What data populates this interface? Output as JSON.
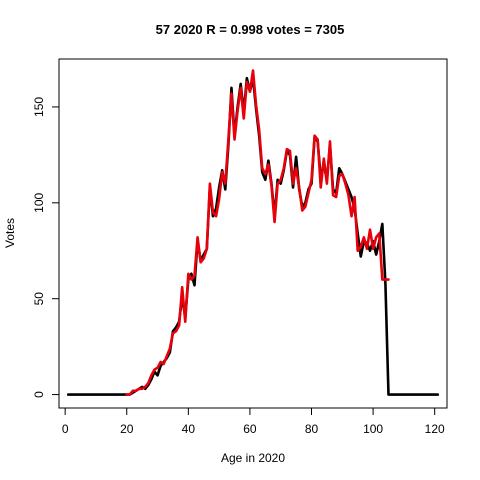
{
  "chart_data": {
    "type": "line",
    "title": "57 2020 R = 0.998 votes = 7305",
    "xlabel": "Age in 2020",
    "ylabel": "Votes",
    "xlim": [
      -2,
      124
    ],
    "ylim": [
      -7,
      175
    ],
    "x_ticks": [
      0,
      20,
      40,
      60,
      80,
      100,
      120
    ],
    "y_ticks": [
      0,
      50,
      100,
      150
    ],
    "grid": false,
    "legend": "none",
    "series": [
      {
        "color": "#000000",
        "x": [
          1,
          2,
          3,
          4,
          5,
          6,
          7,
          8,
          9,
          10,
          11,
          12,
          13,
          14,
          15,
          16,
          17,
          18,
          19,
          20,
          21,
          22,
          23,
          24,
          25,
          26,
          27,
          28,
          29,
          30,
          31,
          32,
          33,
          34,
          35,
          36,
          37,
          38,
          39,
          40,
          41,
          42,
          43,
          44,
          45,
          46,
          47,
          48,
          49,
          50,
          51,
          52,
          53,
          54,
          55,
          56,
          57,
          58,
          59,
          60,
          61,
          62,
          63,
          64,
          65,
          66,
          67,
          68,
          69,
          70,
          71,
          72,
          73,
          74,
          75,
          76,
          77,
          78,
          79,
          80,
          81,
          82,
          83,
          84,
          85,
          86,
          87,
          88,
          89,
          90,
          91,
          92,
          93,
          94,
          95,
          96,
          97,
          98,
          99,
          100,
          101,
          102,
          103,
          104,
          105,
          106,
          107,
          108,
          109,
          110,
          111,
          112,
          113,
          114,
          115,
          116,
          117,
          118,
          119,
          120,
          121
        ],
        "y": [
          0,
          0,
          0,
          0,
          0,
          0,
          0,
          0,
          0,
          0,
          0,
          0,
          0,
          0,
          0,
          0,
          0,
          0,
          0,
          0,
          0,
          1,
          2,
          3,
          4,
          3,
          5,
          8,
          12,
          10,
          15,
          17,
          19,
          22,
          33,
          35,
          38,
          51,
          40,
          60,
          63,
          57,
          80,
          70,
          73,
          76,
          108,
          93,
          97,
          108,
          117,
          107,
          130,
          160,
          135,
          150,
          162,
          147,
          165,
          158,
          165,
          149,
          135,
          116,
          112,
          122,
          110,
          93,
          112,
          110,
          117,
          127,
          125,
          108,
          124,
          107,
          98,
          100,
          107,
          110,
          134,
          132,
          113,
          120,
          112,
          130,
          107,
          105,
          118,
          115,
          111,
          107,
          103,
          97,
          84,
          72,
          80,
          79,
          75,
          80,
          73,
          80,
          89,
          58,
          0,
          0,
          0,
          0,
          0,
          0,
          0,
          0,
          0,
          0,
          0,
          0,
          0,
          0,
          0,
          0,
          0
        ]
      },
      {
        "color": "#e8000b",
        "x": [
          20,
          21,
          22,
          23,
          24,
          25,
          26,
          27,
          28,
          29,
          30,
          31,
          32,
          33,
          34,
          35,
          36,
          37,
          38,
          39,
          40,
          41,
          42,
          43,
          44,
          45,
          46,
          47,
          48,
          49,
          50,
          51,
          52,
          53,
          54,
          55,
          56,
          57,
          58,
          59,
          60,
          61,
          62,
          63,
          64,
          65,
          66,
          67,
          68,
          69,
          70,
          71,
          72,
          73,
          74,
          75,
          76,
          77,
          78,
          79,
          80,
          81,
          82,
          83,
          84,
          85,
          86,
          87,
          88,
          89,
          90,
          91,
          92,
          93,
          94,
          95,
          96,
          97,
          98,
          99,
          100,
          101,
          102,
          103,
          104,
          105
        ],
        "y": [
          0,
          0,
          2,
          2,
          3,
          3,
          4,
          6,
          10,
          13,
          14,
          17,
          16,
          20,
          24,
          32,
          33,
          36,
          56,
          38,
          63,
          60,
          62,
          82,
          69,
          71,
          76,
          110,
          95,
          93,
          102,
          116,
          110,
          133,
          157,
          133,
          148,
          160,
          144,
          163,
          158,
          169,
          151,
          138,
          118,
          115,
          120,
          109,
          90,
          110,
          112,
          118,
          128,
          127,
          110,
          118,
          108,
          96,
          98,
          105,
          112,
          135,
          133,
          108,
          123,
          110,
          132,
          104,
          103,
          114,
          115,
          110,
          104,
          93,
          103,
          75,
          77,
          82,
          76,
          86,
          76,
          82,
          84,
          60,
          60,
          60
        ]
      }
    ]
  }
}
